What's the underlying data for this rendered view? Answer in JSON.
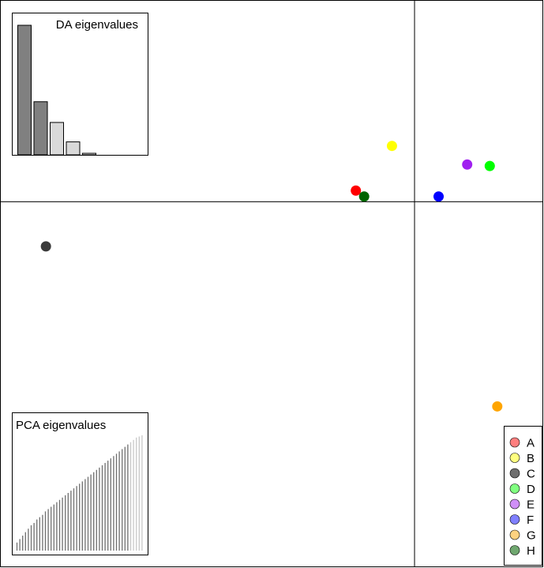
{
  "chart_data": [
    {
      "type": "scatter",
      "title": "",
      "xlabel": "",
      "ylabel": "",
      "xlim": [
        -5.5,
        1.7
      ],
      "ylim": [
        -4.9,
        2.7
      ],
      "grid": false,
      "axis_lines": {
        "x": 0,
        "y": 0
      },
      "legend_position": "bottom-right",
      "series": [
        {
          "name": "A",
          "color": "#FF0000",
          "legend_color": "#FF7F7F",
          "x": [
            -0.78
          ],
          "y": [
            0.15
          ]
        },
        {
          "name": "B",
          "color": "#FFFF00",
          "legend_color": "#FFFF80",
          "x": [
            -0.3
          ],
          "y": [
            0.75
          ]
        },
        {
          "name": "C",
          "color": "#3A3A3A",
          "legend_color": "#6E6E6E",
          "x": [
            -4.9
          ],
          "y": [
            -0.6
          ]
        },
        {
          "name": "D",
          "color": "#00FF00",
          "legend_color": "#80FF80",
          "x": [
            1.0
          ],
          "y": [
            0.48
          ]
        },
        {
          "name": "E",
          "color": "#A020F0",
          "legend_color": "#CF8FF7",
          "x": [
            0.7
          ],
          "y": [
            0.5
          ]
        },
        {
          "name": "F",
          "color": "#0000FF",
          "legend_color": "#7F7FFF",
          "x": [
            0.32
          ],
          "y": [
            0.07
          ]
        },
        {
          "name": "G",
          "color": "#FFA500",
          "legend_color": "#FFD280",
          "x": [
            1.1
          ],
          "y": [
            -2.75
          ]
        },
        {
          "name": "H",
          "color": "#006400",
          "legend_color": "#6FA76F",
          "x": [
            -0.67
          ],
          "y": [
            0.07
          ]
        }
      ]
    },
    {
      "type": "bar",
      "title": "DA eigenvalues",
      "values": [
        100,
        41,
        25,
        10,
        1.2
      ],
      "retained": 2,
      "colors": {
        "retained": "#808080",
        "other": "#D9D9D9",
        "stroke": "#000000"
      }
    },
    {
      "type": "bar",
      "title": "PCA eigenvalues",
      "values": [
        7,
        10,
        13,
        16,
        19,
        22,
        24,
        27,
        29,
        31,
        34,
        36,
        38,
        40,
        42,
        44,
        46,
        48,
        50,
        52,
        54,
        56,
        58,
        60,
        62,
        64,
        66,
        68,
        70,
        72,
        74,
        76,
        78,
        80,
        82,
        84,
        86,
        88,
        90,
        92,
        94,
        96,
        98,
        99,
        100
      ],
      "retained": 40,
      "colors": {
        "retained": "#6E6E6E",
        "other": "#C8C8C8"
      }
    }
  ]
}
